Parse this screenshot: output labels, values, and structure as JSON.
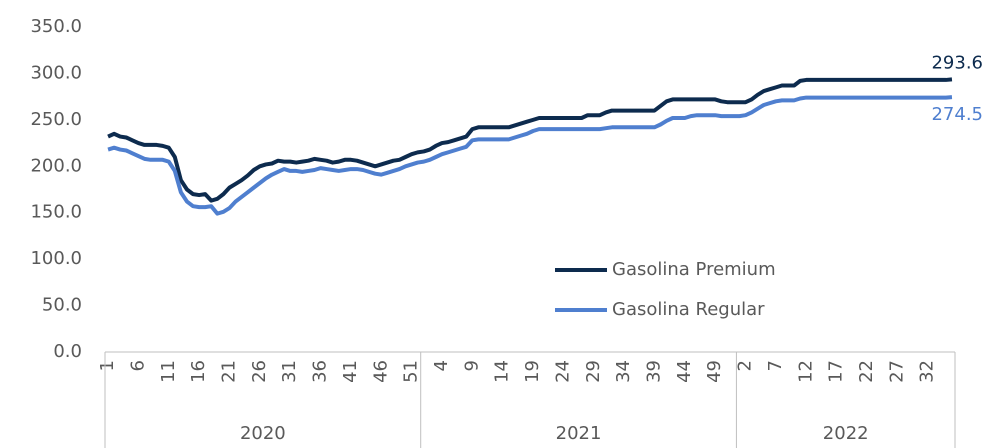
{
  "chart_data": {
    "type": "line",
    "categories": [
      "1",
      null,
      null,
      null,
      null,
      "6",
      null,
      null,
      null,
      null,
      "11",
      null,
      null,
      null,
      null,
      "16",
      null,
      null,
      null,
      null,
      "21",
      null,
      null,
      null,
      null,
      "26",
      null,
      null,
      null,
      null,
      "31",
      null,
      null,
      null,
      null,
      "36",
      null,
      null,
      null,
      null,
      "41",
      null,
      null,
      null,
      null,
      "46",
      null,
      null,
      null,
      null,
      "51",
      null,
      null,
      null,
      null,
      "4",
      null,
      null,
      null,
      null,
      "9",
      null,
      null,
      null,
      null,
      "14",
      null,
      null,
      null,
      null,
      "19",
      null,
      null,
      null,
      null,
      "24",
      null,
      null,
      null,
      null,
      "29",
      null,
      null,
      null,
      null,
      "34",
      null,
      null,
      null,
      null,
      "39",
      null,
      null,
      null,
      null,
      "44",
      null,
      null,
      null,
      null,
      "49",
      null,
      null,
      null,
      null,
      "2",
      null,
      null,
      null,
      null,
      "7",
      null,
      null,
      null,
      null,
      "12",
      null,
      null,
      null,
      null,
      "17",
      null,
      null,
      null,
      null,
      "22",
      null,
      null,
      null,
      null,
      "27",
      null,
      null,
      null,
      null,
      "32",
      null,
      null,
      null,
      null
    ],
    "groups": [
      {
        "name": "2020",
        "size": 52
      },
      {
        "name": "2021",
        "size": 52
      },
      {
        "name": "2022",
        "size": 36
      }
    ],
    "series": [
      {
        "name": "Gasolina Premium",
        "color": "#0d2b4e",
        "values": [
          232,
          235,
          232,
          231,
          228,
          225,
          223,
          223,
          223,
          222,
          220,
          210,
          185,
          175,
          170,
          169,
          170,
          163,
          165,
          170,
          177,
          181,
          185,
          190,
          196,
          200,
          202,
          203,
          206,
          205,
          205,
          204,
          205,
          206,
          208,
          207,
          206,
          204,
          205,
          207,
          207,
          206,
          204,
          202,
          200,
          202,
          204,
          206,
          207,
          210,
          213,
          215,
          216,
          218,
          222,
          225,
          226,
          228,
          230,
          232,
          240,
          242,
          242,
          242,
          242,
          242,
          242,
          244,
          246,
          248,
          250,
          252,
          252,
          252,
          252,
          252,
          252,
          252,
          252,
          255,
          255,
          255,
          258,
          260,
          260,
          260,
          260,
          260,
          260,
          260,
          260,
          265,
          270,
          272,
          272,
          272,
          272,
          272,
          272,
          272,
          272,
          270,
          269,
          269,
          269,
          269,
          272,
          277,
          281,
          283,
          285,
          287,
          287,
          287,
          292,
          293,
          293,
          293,
          293,
          293,
          293,
          293,
          293,
          293,
          293,
          293,
          293,
          293,
          293,
          293,
          293,
          293,
          293,
          293,
          293,
          293,
          293,
          293,
          293,
          293.6
        ]
      },
      {
        "name": "Gasolina Regular",
        "color": "#4f7fcf",
        "values": [
          218,
          220,
          218,
          217,
          214,
          211,
          208,
          207,
          207,
          207,
          205,
          195,
          172,
          162,
          157,
          156,
          156,
          157,
          149,
          151,
          155,
          162,
          167,
          172,
          177,
          182,
          187,
          191,
          194,
          197,
          195,
          195,
          194,
          195,
          196,
          198,
          197,
          196,
          195,
          196,
          197,
          197,
          196,
          194,
          192,
          191,
          193,
          195,
          197,
          200,
          202,
          204,
          205,
          207,
          210,
          213,
          215,
          217,
          219,
          221,
          228,
          229,
          229,
          229,
          229,
          229,
          229,
          231,
          233,
          235,
          238,
          240,
          240,
          240,
          240,
          240,
          240,
          240,
          240,
          240,
          240,
          240,
          241,
          242,
          242,
          242,
          242,
          242,
          242,
          242,
          242,
          245,
          249,
          252,
          252,
          252,
          254,
          255,
          255,
          255,
          255,
          254,
          254,
          254,
          254,
          255,
          258,
          262,
          266,
          268,
          270,
          271,
          271,
          271,
          273,
          274,
          274,
          274,
          274,
          274,
          274,
          274,
          274,
          274,
          274,
          274,
          274,
          274,
          274,
          274,
          274,
          274,
          274,
          274,
          274,
          274,
          274,
          274,
          274,
          274.5
        ]
      }
    ],
    "ylim": [
      0,
      350
    ],
    "yticks": [
      {
        "value": 0,
        "label": "0.0"
      },
      {
        "value": 50,
        "label": "50.0"
      },
      {
        "value": 100,
        "label": "100.0"
      },
      {
        "value": 150,
        "label": "150.0"
      },
      {
        "value": 200,
        "label": "200.0"
      },
      {
        "value": 250,
        "label": "250.0"
      },
      {
        "value": 300,
        "label": "300.0"
      },
      {
        "value": 350,
        "label": "350.0"
      }
    ],
    "grid": false,
    "legend": "lower right"
  }
}
